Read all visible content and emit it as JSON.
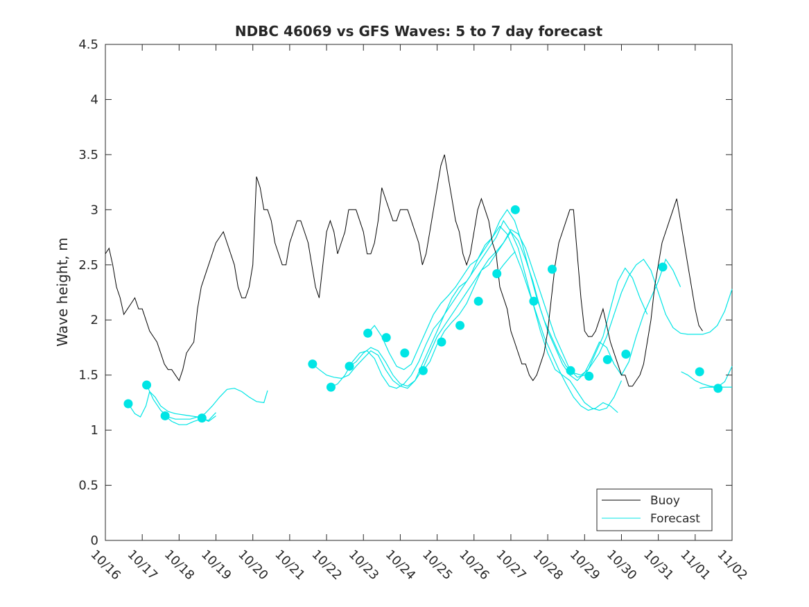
{
  "chart_data": {
    "type": "line",
    "title": "NDBC 46069 vs GFS Waves: 5 to 7 day forecast",
    "xlabel": "",
    "ylabel": "Wave height, m",
    "xlim": [
      0,
      17
    ],
    "ylim": [
      0,
      4.5
    ],
    "x_tick_labels": [
      "10/16",
      "10/17",
      "10/18",
      "10/19",
      "10/20",
      "10/21",
      "10/22",
      "10/23",
      "10/24",
      "10/25",
      "10/26",
      "10/27",
      "10/28",
      "10/29",
      "10/30",
      "10/31",
      "11/01",
      "11/02"
    ],
    "y_tick_labels": [
      "0",
      "0.5",
      "1",
      "1.5",
      "2",
      "2.5",
      "3",
      "3.5",
      "4",
      "4.5"
    ],
    "y_tick_values": [
      0,
      0.5,
      1,
      1.5,
      2,
      2.5,
      3,
      3.5,
      4,
      4.5
    ],
    "legend": {
      "position": "bottom-right",
      "entries": [
        "Buoy",
        "Forecast"
      ]
    },
    "colors": {
      "buoy": "#000000",
      "forecast": "#00e5e5"
    },
    "series": [
      {
        "name": "Buoy",
        "x": [
          0,
          0.1,
          0.2,
          0.3,
          0.4,
          0.5,
          0.6,
          0.7,
          0.8,
          0.9,
          1,
          1.1,
          1.2,
          1.3,
          1.4,
          1.5,
          1.6,
          1.7,
          1.8,
          1.9,
          2,
          2.1,
          2.2,
          2.3,
          2.4,
          2.5,
          2.6,
          2.7,
          2.8,
          2.9,
          3,
          3.1,
          3.2,
          3.3,
          3.4,
          3.5,
          3.6,
          3.7,
          3.8,
          3.9,
          4,
          4.1,
          4.2,
          4.3,
          4.4,
          4.5,
          4.6,
          4.7,
          4.8,
          4.9,
          5,
          5.1,
          5.2,
          5.3,
          5.4,
          5.5,
          5.6,
          5.7,
          5.8,
          5.9,
          6,
          6.1,
          6.2,
          6.3,
          6.4,
          6.5,
          6.6,
          6.7,
          6.8,
          6.9,
          7,
          7.1,
          7.2,
          7.3,
          7.4,
          7.5,
          7.6,
          7.7,
          7.8,
          7.9,
          8,
          8.1,
          8.2,
          8.3,
          8.4,
          8.5,
          8.6,
          8.7,
          8.8,
          8.9,
          9,
          9.1,
          9.2,
          9.3,
          9.4,
          9.5,
          9.6,
          9.7,
          9.8,
          9.9,
          10,
          10.1,
          10.2,
          10.3,
          10.4,
          10.5,
          10.6,
          10.7,
          10.8,
          10.9,
          11,
          11.1,
          11.2,
          11.3,
          11.4,
          11.5,
          11.6,
          11.7,
          11.8,
          11.9,
          12,
          12.1,
          12.2,
          12.3,
          12.4,
          12.5,
          12.6,
          12.7,
          12.8,
          12.9,
          13,
          13.1,
          13.2,
          13.3,
          13.4,
          13.5,
          13.6,
          13.7,
          13.8,
          13.9,
          14,
          14.1,
          14.2,
          14.3,
          14.4,
          14.5,
          14.6,
          14.7,
          14.8,
          14.9,
          15,
          15.1,
          15.2,
          15.3,
          15.4,
          15.5,
          15.6,
          15.7,
          15.8,
          15.9,
          16,
          16.1,
          16.2
        ],
        "values": [
          2.6,
          2.65,
          2.5,
          2.3,
          2.2,
          2.05,
          2.1,
          2.15,
          2.2,
          2.1,
          2.1,
          2.0,
          1.9,
          1.85,
          1.8,
          1.7,
          1.6,
          1.55,
          1.55,
          1.5,
          1.45,
          1.55,
          1.7,
          1.75,
          1.8,
          2.1,
          2.3,
          2.4,
          2.5,
          2.6,
          2.7,
          2.75,
          2.8,
          2.7,
          2.6,
          2.5,
          2.3,
          2.2,
          2.2,
          2.3,
          2.5,
          3.3,
          3.2,
          3.0,
          3.0,
          2.9,
          2.7,
          2.6,
          2.5,
          2.5,
          2.7,
          2.8,
          2.9,
          2.9,
          2.8,
          2.7,
          2.5,
          2.3,
          2.2,
          2.5,
          2.8,
          2.9,
          2.8,
          2.6,
          2.7,
          2.8,
          3.0,
          3.0,
          3.0,
          2.9,
          2.8,
          2.6,
          2.6,
          2.7,
          2.9,
          3.2,
          3.1,
          3.0,
          2.9,
          2.9,
          3.0,
          3.0,
          3.0,
          2.9,
          2.8,
          2.7,
          2.5,
          2.6,
          2.8,
          3.0,
          3.2,
          3.4,
          3.5,
          3.3,
          3.1,
          2.9,
          2.8,
          2.6,
          2.5,
          2.6,
          2.8,
          3.0,
          3.1,
          3.0,
          2.9,
          2.7,
          2.6,
          2.3,
          2.2,
          2.1,
          1.9,
          1.8,
          1.7,
          1.6,
          1.6,
          1.5,
          1.45,
          1.5,
          1.6,
          1.7,
          1.9,
          2.2,
          2.5,
          2.7,
          2.8,
          2.9,
          3.0,
          3.0,
          2.6,
          2.2,
          1.9,
          1.85,
          1.85,
          1.9,
          2.0,
          2.1,
          1.95,
          1.8,
          1.7,
          1.6,
          1.5,
          1.5,
          1.4,
          1.4,
          1.45,
          1.5,
          1.6,
          1.8,
          2.0,
          2.3,
          2.5,
          2.7,
          2.8,
          2.9,
          3.0,
          3.1,
          2.9,
          2.7,
          2.5,
          2.3,
          2.1,
          1.95,
          1.9
        ]
      },
      {
        "name": "Forecast",
        "segments": [
          {
            "x": [
              0.62,
              0.8,
              0.95,
              1.1,
              1.2,
              1.35,
              1.5,
              1.7,
              1.9,
              2.1,
              2.3,
              2.5,
              2.7
            ],
            "values": [
              1.24,
              1.15,
              1.12,
              1.22,
              1.35,
              1.3,
              1.22,
              1.17,
              1.15,
              1.14,
              1.13,
              1.12,
              1.11
            ]
          },
          {
            "x": [
              1.12,
              1.3,
              1.5,
              1.7,
              1.9,
              2.1,
              2.3,
              2.5,
              2.7,
              2.9,
              3.1,
              3.3,
              3.5,
              3.7,
              3.9,
              4.1,
              4.3,
              4.4
            ],
            "values": [
              1.41,
              1.28,
              1.18,
              1.12,
              1.1,
              1.1,
              1.1,
              1.12,
              1.15,
              1.22,
              1.3,
              1.37,
              1.38,
              1.35,
              1.3,
              1.26,
              1.25,
              1.36
            ]
          },
          {
            "x": [
              1.62,
              1.8,
              2.0,
              2.2,
              2.4,
              2.6,
              2.8,
              3.0
            ],
            "values": [
              1.13,
              1.08,
              1.05,
              1.05,
              1.08,
              1.1,
              1.09,
              1.16
            ]
          },
          {
            "x": [
              2.62,
              2.8,
              3.0
            ],
            "values": [
              1.11,
              1.08,
              1.13
            ]
          },
          {
            "x": [
              5.62,
              5.8,
              6.0,
              6.2,
              6.4,
              6.6,
              6.8,
              7.0,
              7.2,
              7.4,
              7.6,
              7.8,
              8.0,
              8.2,
              8.4,
              8.6,
              8.8,
              9.0,
              9.2,
              9.4,
              9.6,
              9.8,
              10.0,
              10.2,
              10.4,
              10.6,
              10.8,
              11.0,
              11.2,
              11.4,
              11.6,
              11.8,
              12.0,
              12.2,
              12.4,
              12.6,
              12.8,
              13.0,
              13.2,
              13.4,
              13.6,
              13.8,
              14.0
            ],
            "values": [
              1.6,
              1.55,
              1.5,
              1.48,
              1.47,
              1.5,
              1.58,
              1.65,
              1.72,
              1.68,
              1.55,
              1.45,
              1.4,
              1.38,
              1.45,
              1.6,
              1.75,
              1.9,
              2.05,
              2.2,
              2.3,
              2.35,
              2.45,
              2.55,
              2.65,
              2.75,
              2.9,
              2.8,
              2.65,
              2.4,
              2.15,
              1.9,
              1.7,
              1.55,
              1.5,
              1.45,
              1.35,
              1.25,
              1.2,
              1.18,
              1.2,
              1.3,
              1.45
            ]
          },
          {
            "x": [
              6.12,
              6.3,
              6.5,
              6.7,
              6.9,
              7.1,
              7.3,
              7.5,
              7.7,
              7.9,
              8.1,
              8.3,
              8.5,
              8.7,
              8.9,
              9.1,
              9.3,
              9.5,
              9.7,
              9.9,
              10.1,
              10.3,
              10.5,
              10.7,
              10.9,
              11.1,
              11.3,
              11.5,
              11.7,
              11.9,
              12.1,
              12.3,
              12.5,
              12.7,
              12.9,
              13.1,
              13.3,
              13.5,
              13.7,
              13.9
            ],
            "values": [
              1.39,
              1.42,
              1.5,
              1.62,
              1.7,
              1.72,
              1.65,
              1.5,
              1.4,
              1.38,
              1.42,
              1.5,
              1.62,
              1.78,
              1.92,
              2.0,
              2.1,
              2.2,
              2.3,
              2.4,
              2.55,
              2.68,
              2.75,
              2.85,
              2.78,
              2.62,
              2.45,
              2.25,
              2.05,
              1.85,
              1.7,
              1.55,
              1.42,
              1.3,
              1.22,
              1.18,
              1.2,
              1.25,
              1.22,
              1.16
            ]
          },
          {
            "x": [
              6.62,
              6.8,
              7.0,
              7.2,
              7.4,
              7.6,
              7.8,
              8.0,
              8.2,
              8.4,
              8.6,
              8.8,
              9.0,
              9.2,
              9.4,
              9.6,
              9.8,
              10.0,
              10.2,
              10.4,
              10.6,
              10.8,
              11.0,
              11.2,
              11.4,
              11.6,
              11.8,
              12.0,
              12.2,
              12.4,
              12.6,
              12.8,
              13.0,
              13.2,
              13.4,
              13.6,
              13.8,
              14.0,
              14.2,
              14.4,
              14.6,
              14.8,
              15.0,
              15.2,
              15.4,
              15.6
            ],
            "values": [
              1.58,
              1.62,
              1.7,
              1.75,
              1.72,
              1.62,
              1.5,
              1.42,
              1.4,
              1.45,
              1.55,
              1.7,
              1.85,
              1.95,
              2.05,
              2.15,
              2.25,
              2.35,
              2.45,
              2.5,
              2.6,
              2.7,
              2.8,
              2.72,
              2.55,
              2.35,
              2.1,
              1.9,
              1.75,
              1.6,
              1.5,
              1.45,
              1.52,
              1.65,
              1.8,
              1.75,
              1.6,
              1.5,
              1.62,
              1.85,
              2.05,
              2.2,
              2.35,
              2.55,
              2.45,
              2.3
            ]
          },
          {
            "x": [
              7.12,
              7.3,
              7.5,
              7.7,
              7.9,
              8.1,
              8.3,
              8.5,
              8.7,
              8.9,
              9.1,
              9.3,
              9.5,
              9.7,
              9.9,
              10.1,
              10.3,
              10.5,
              10.7,
              10.9,
              11.1,
              11.3,
              11.5,
              11.7,
              11.9,
              12.1,
              12.3,
              12.5,
              12.7,
              12.9,
              13.1,
              13.3,
              13.5,
              13.7,
              13.9,
              14.1,
              14.3,
              14.5,
              14.7
            ],
            "values": [
              1.88,
              1.95,
              1.85,
              1.7,
              1.58,
              1.55,
              1.6,
              1.75,
              1.9,
              2.05,
              2.15,
              2.22,
              2.3,
              2.4,
              2.5,
              2.55,
              2.65,
              2.75,
              2.9,
              3.0,
              2.9,
              2.7,
              2.45,
              2.2,
              2.0,
              1.85,
              1.7,
              1.58,
              1.52,
              1.5,
              1.55,
              1.7,
              1.85,
              2.1,
              2.35,
              2.47,
              2.38,
              2.2,
              2.05
            ]
          },
          {
            "x": [
              8.62,
              8.8,
              9.0,
              9.2,
              9.4,
              9.6,
              9.8,
              10.0,
              10.2,
              10.4,
              10.6,
              10.8,
              11.0,
              11.2,
              11.4,
              11.6,
              11.8,
              12.0,
              12.2,
              12.4,
              12.6,
              12.8,
              13.0,
              13.2,
              13.4,
              13.6,
              13.8,
              14.0,
              14.2,
              14.4,
              14.6,
              14.8,
              15.0,
              15.2,
              15.4,
              15.6,
              15.8,
              16.0,
              16.2,
              16.4,
              16.6,
              16.8,
              17.0
            ],
            "values": [
              1.54,
              1.62,
              1.78,
              1.9,
              1.98,
              2.05,
              2.15,
              2.3,
              2.45,
              2.55,
              2.62,
              2.7,
              2.82,
              2.78,
              2.65,
              2.45,
              2.25,
              2.05,
              1.85,
              1.7,
              1.55,
              1.48,
              1.5,
              1.6,
              1.7,
              1.85,
              2.05,
              2.25,
              2.4,
              2.5,
              2.55,
              2.45,
              2.25,
              2.05,
              1.93,
              1.88,
              1.87,
              1.87,
              1.87,
              1.89,
              1.95,
              2.08,
              2.28
            ]
          },
          {
            "x": [
              10.62,
              10.8,
              11.0,
              11.12
            ],
            "values": [
              2.42,
              2.5,
              2.58,
              2.62
            ]
          },
          {
            "x": [
              15.62,
              15.8,
              16.0,
              16.2,
              16.4,
              16.6,
              16.8,
              17.0
            ],
            "values": [
              1.53,
              1.5,
              1.45,
              1.42,
              1.4,
              1.39,
              1.44,
              1.58
            ]
          },
          {
            "x": [
              16.12,
              16.3,
              16.5,
              16.7,
              16.9,
              17.0
            ],
            "values": [
              1.38,
              1.39,
              1.39,
              1.39,
              1.39,
              1.39
            ]
          }
        ],
        "markers": {
          "x": [
            0.62,
            1.12,
            1.62,
            2.62,
            5.62,
            6.12,
            6.62,
            7.12,
            7.62,
            8.12,
            8.62,
            9.12,
            9.62,
            10.12,
            10.62,
            11.12,
            11.62,
            12.12,
            12.62,
            13.12,
            13.62,
            14.12,
            15.12,
            16.12,
            16.62
          ],
          "values": [
            1.24,
            1.41,
            1.13,
            1.11,
            1.6,
            1.39,
            1.58,
            1.88,
            1.84,
            1.7,
            1.54,
            1.8,
            1.95,
            2.17,
            2.42,
            3.0,
            2.17,
            2.46,
            1.54,
            1.49,
            1.64,
            1.69,
            2.48,
            1.53,
            1.38
          ]
        }
      }
    ]
  }
}
